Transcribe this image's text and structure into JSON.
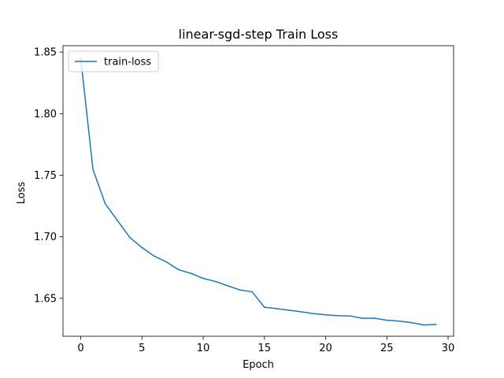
{
  "chart_data": {
    "type": "line",
    "title": "linear-sgd-step  Train Loss",
    "xlabel": "Epoch",
    "ylabel": "Loss",
    "xlim": [
      -1.45,
      30.45
    ],
    "ylim": [
      1.6192,
      1.8552
    ],
    "xticks": [
      0,
      5,
      10,
      15,
      20,
      25,
      30
    ],
    "yticks": [
      1.65,
      1.7,
      1.75,
      1.8,
      1.85
    ],
    "grid": false,
    "legend_position": "top-left",
    "series": [
      {
        "name": "train-loss",
        "color": "#1f77b4",
        "x": [
          0,
          1,
          2,
          3,
          4,
          5,
          6,
          7,
          8,
          9,
          10,
          11,
          12,
          13,
          14,
          15,
          16,
          17,
          18,
          19,
          20,
          21,
          22,
          23,
          24,
          25,
          26,
          27,
          28,
          29
        ],
        "y": [
          1.8446,
          1.7546,
          1.7268,
          1.7132,
          1.6995,
          1.6912,
          1.6843,
          1.6795,
          1.6732,
          1.6703,
          1.6662,
          1.6637,
          1.6602,
          1.6568,
          1.6553,
          1.6428,
          1.6417,
          1.6404,
          1.6391,
          1.6376,
          1.6366,
          1.6359,
          1.6357,
          1.6338,
          1.6338,
          1.6322,
          1.6315,
          1.6303,
          1.6284,
          1.6288
        ]
      }
    ]
  }
}
